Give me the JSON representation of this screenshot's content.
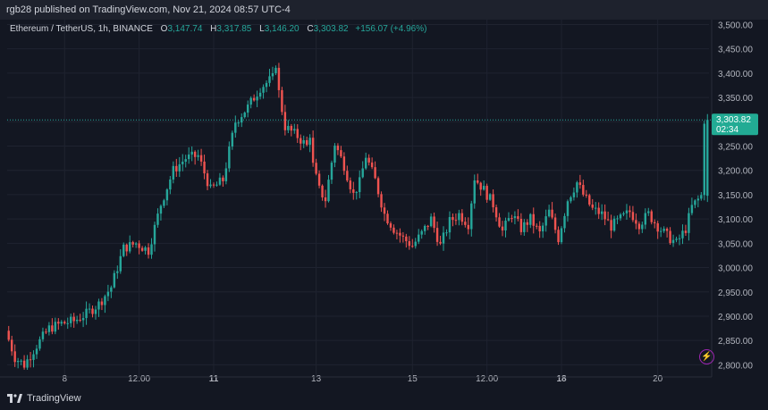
{
  "header": {
    "published_text": "rgb28 published on TradingView.com, Nov 21, 2024 08:57 UTC-4"
  },
  "legend": {
    "symbol": "Ethereum / TetherUS, 1h, BINANCE",
    "o_label": "O",
    "o_value": "3,147.74",
    "h_label": "H",
    "h_value": "3,317.85",
    "l_label": "L",
    "l_value": "3,146.20",
    "c_label": "C",
    "c_value": "3,303.82",
    "change": "+156.07 (+4.96%)"
  },
  "footer": {
    "brand": "TradingView"
  },
  "colors": {
    "background": "#131722",
    "up": "#26a69a",
    "down": "#ef5350",
    "grid": "#1f2330",
    "axis_text": "#b2b5be",
    "price_label_bg": "#22ab94"
  },
  "price_tag": {
    "price": "3,303.82",
    "countdown": "02:34"
  },
  "chart_data": {
    "type": "candlestick",
    "ylim": [
      2775,
      3510
    ],
    "y_ticks": [
      2800,
      2850,
      2900,
      2950,
      3000,
      3050,
      3100,
      3150,
      3200,
      3250,
      3300,
      3350,
      3400,
      3450,
      3500
    ],
    "y_tick_labels": [
      "2,800.00",
      "2,850.00",
      "2,900.00",
      "2,950.00",
      "3,000.00",
      "3,050.00",
      "3,100.00",
      "3,150.00",
      "3,200.00",
      "3,250.00",
      "3,300.00",
      "3,350.00",
      "3,400.00",
      "3,450.00",
      "3,500.00"
    ],
    "x_ticks": [
      {
        "label": "8",
        "bar": 18,
        "bold": false
      },
      {
        "label": "12:00",
        "bar": 42,
        "bold": false
      },
      {
        "label": "11",
        "bar": 66,
        "bold": true
      },
      {
        "label": "13",
        "bar": 99,
        "bold": false
      },
      {
        "label": "15",
        "bar": 130,
        "bold": false
      },
      {
        "label": "12:00",
        "bar": 154,
        "bold": false
      },
      {
        "label": "18",
        "bar": 178,
        "bold": true
      },
      {
        "label": "20",
        "bar": 209,
        "bold": false
      }
    ],
    "last_price": 3303.82,
    "keypoints": [
      [
        0,
        2870
      ],
      [
        3,
        2815
      ],
      [
        6,
        2800
      ],
      [
        10,
        2840
      ],
      [
        14,
        2875
      ],
      [
        18,
        2885
      ],
      [
        22,
        2890
      ],
      [
        26,
        2905
      ],
      [
        30,
        2925
      ],
      [
        34,
        2960
      ],
      [
        38,
        3040
      ],
      [
        42,
        3050
      ],
      [
        46,
        3035
      ],
      [
        50,
        3130
      ],
      [
        54,
        3200
      ],
      [
        58,
        3225
      ],
      [
        62,
        3230
      ],
      [
        66,
        3160
      ],
      [
        70,
        3180
      ],
      [
        74,
        3300
      ],
      [
        78,
        3330
      ],
      [
        82,
        3370
      ],
      [
        86,
        3390
      ],
      [
        87,
        3420
      ],
      [
        88,
        3360
      ],
      [
        90,
        3290
      ],
      [
        94,
        3270
      ],
      [
        97,
        3250
      ],
      [
        98,
        3275
      ],
      [
        99,
        3210
      ],
      [
        101,
        3160
      ],
      [
        103,
        3140
      ],
      [
        106,
        3255
      ],
      [
        109,
        3210
      ],
      [
        112,
        3150
      ],
      [
        114,
        3175
      ],
      [
        116,
        3230
      ],
      [
        119,
        3180
      ],
      [
        122,
        3110
      ],
      [
        125,
        3080
      ],
      [
        128,
        3060
      ],
      [
        131,
        3045
      ],
      [
        134,
        3070
      ],
      [
        137,
        3100
      ],
      [
        140,
        3045
      ],
      [
        143,
        3095
      ],
      [
        146,
        3110
      ],
      [
        149,
        3090
      ],
      [
        151,
        3185
      ],
      [
        154,
        3160
      ],
      [
        157,
        3130
      ],
      [
        160,
        3075
      ],
      [
        163,
        3110
      ],
      [
        166,
        3080
      ],
      [
        169,
        3100
      ],
      [
        172,
        3070
      ],
      [
        175,
        3115
      ],
      [
        178,
        3060
      ],
      [
        181,
        3140
      ],
      [
        184,
        3175
      ],
      [
        186,
        3150
      ],
      [
        189,
        3120
      ],
      [
        192,
        3110
      ],
      [
        195,
        3085
      ],
      [
        198,
        3100
      ],
      [
        201,
        3115
      ],
      [
        204,
        3090
      ],
      [
        207,
        3110
      ],
      [
        210,
        3085
      ],
      [
        213,
        3065
      ],
      [
        216,
        3050
      ],
      [
        219,
        3080
      ],
      [
        221,
        3125
      ],
      [
        223,
        3140
      ],
      [
        224,
        3147.74
      ],
      [
        225,
        3303.82
      ]
    ]
  }
}
